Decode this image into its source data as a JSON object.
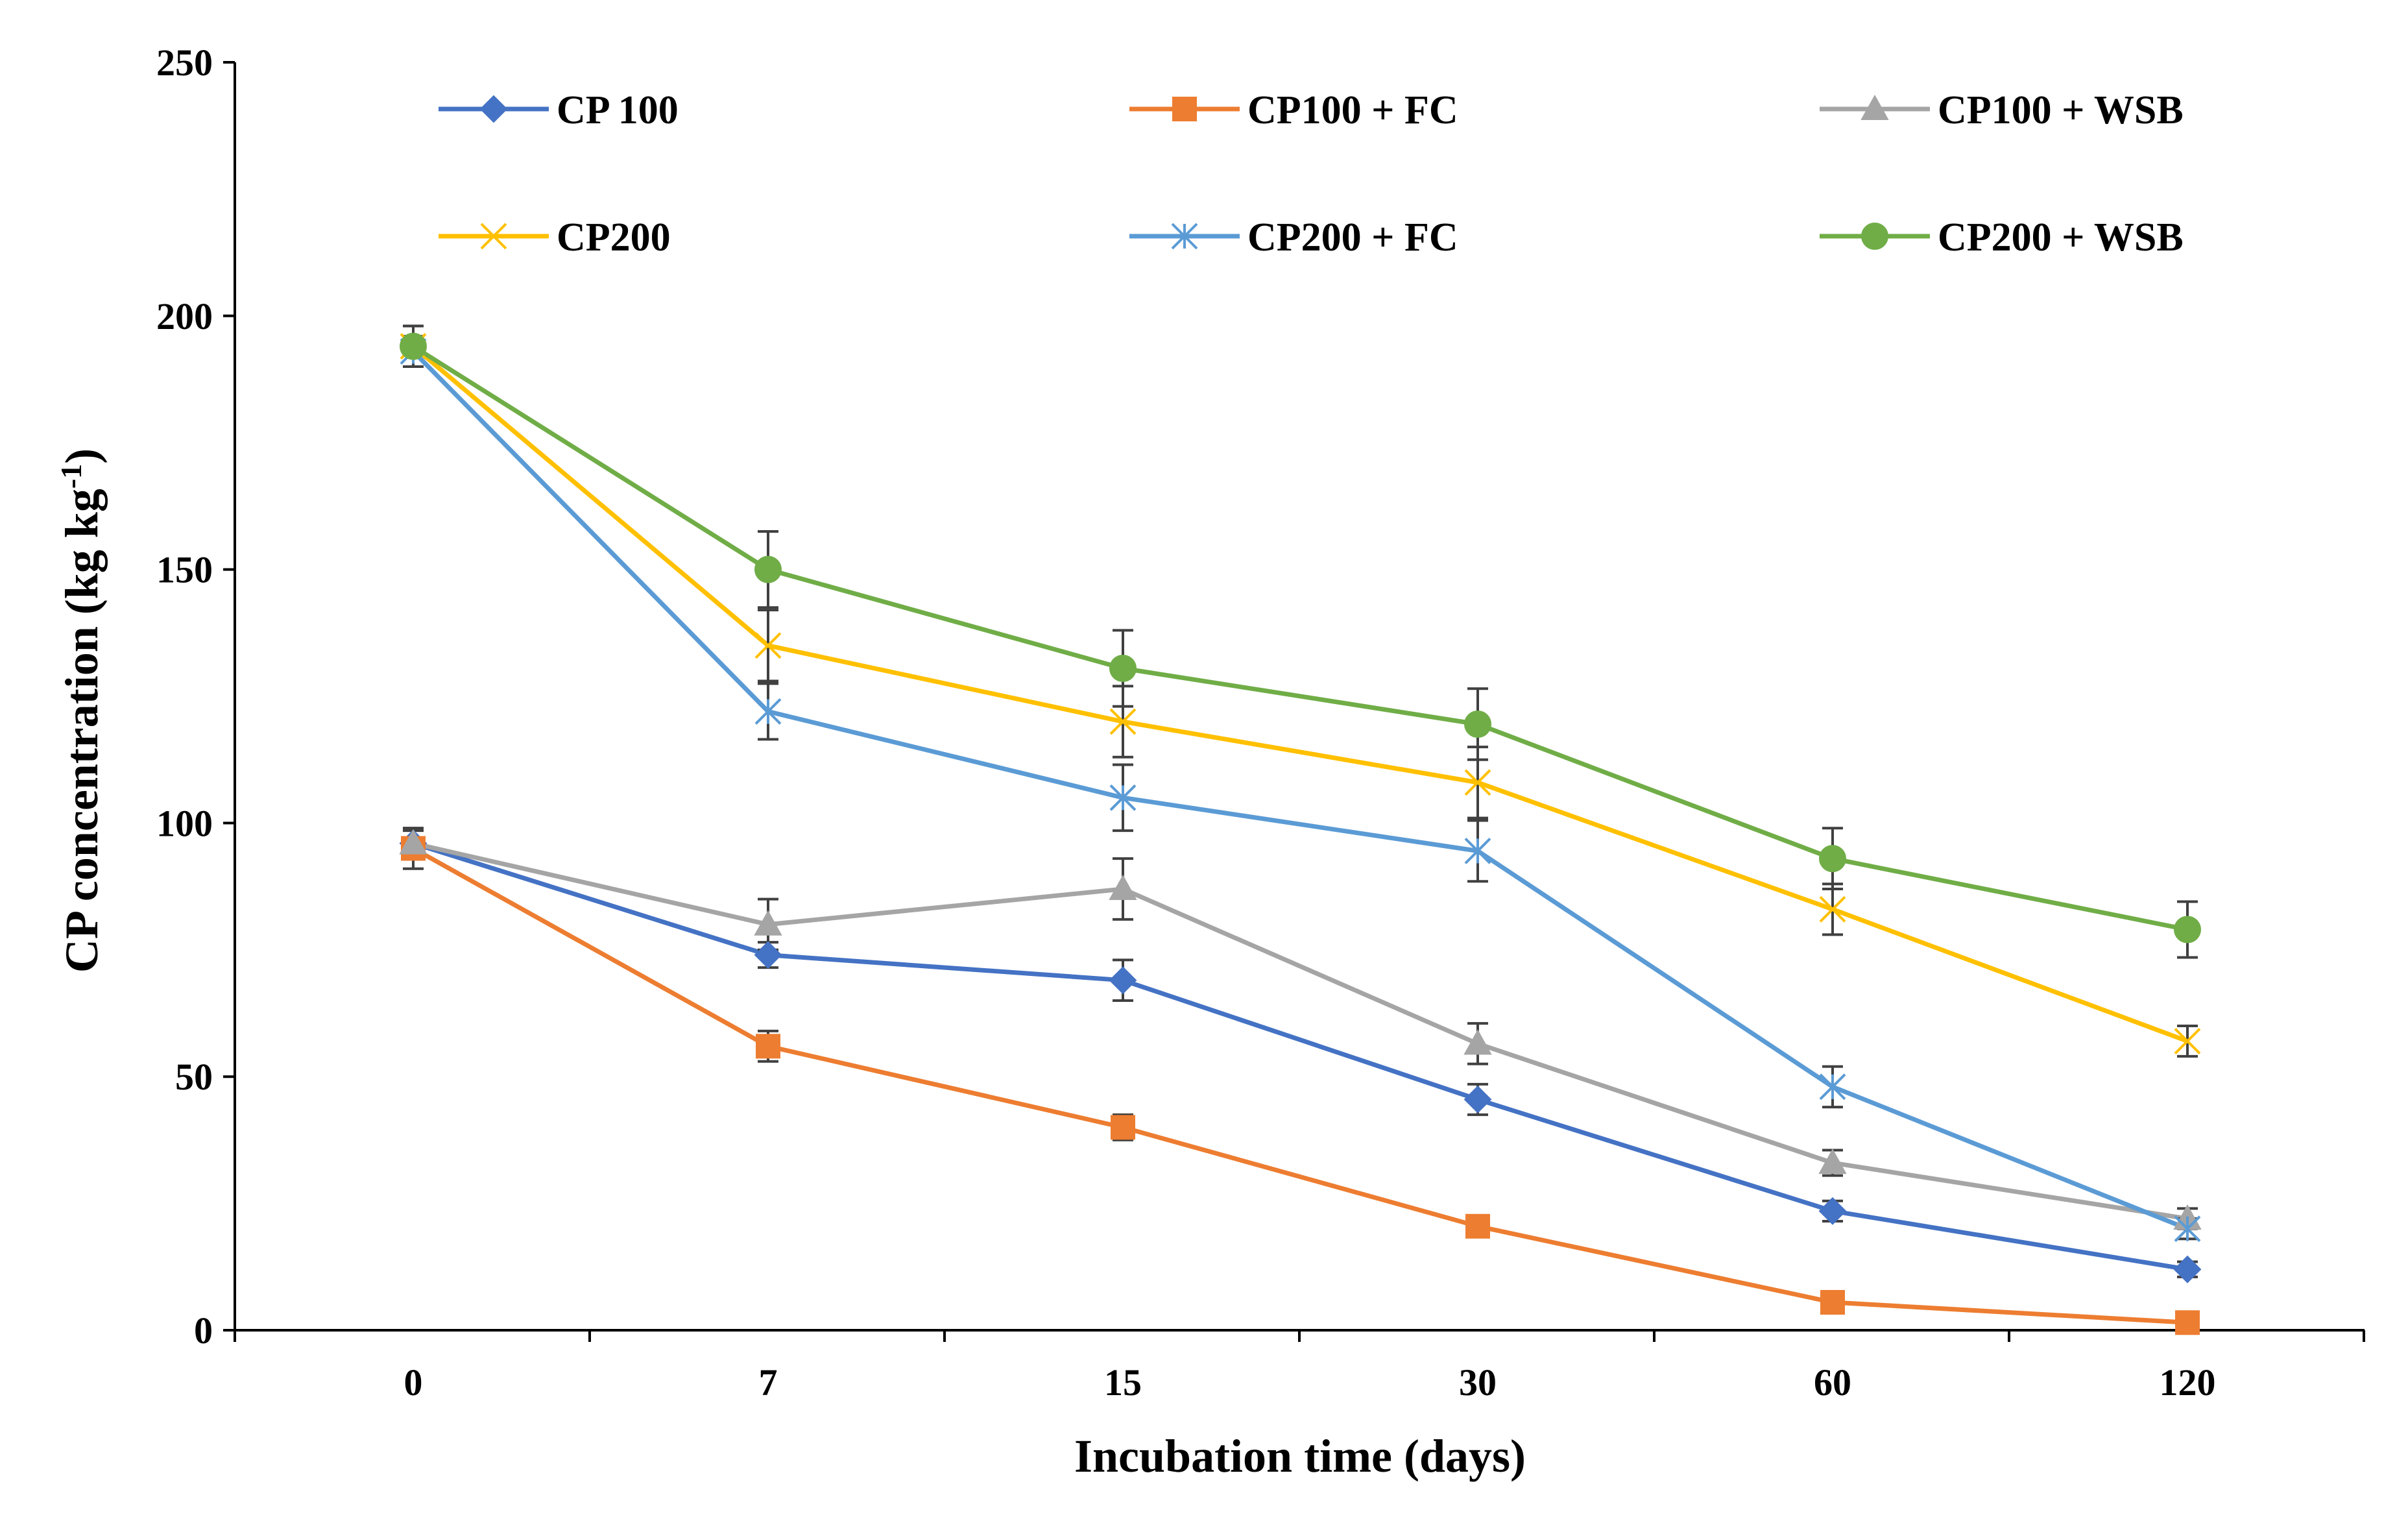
{
  "chart_data": {
    "type": "line",
    "title": "",
    "xlabel": "Incubation time (days)",
    "ylabel": "CP concentration (kg kg",
    "ylabel_sup": "-1",
    "ylabel_close": ")",
    "ylim": [
      0,
      250
    ],
    "yticks": [
      0,
      50,
      100,
      150,
      200,
      250
    ],
    "categories": [
      "0",
      "7",
      "15",
      "30",
      "60",
      "120"
    ],
    "grid": false,
    "legend_position": "top",
    "series": [
      {
        "name": "CP 100",
        "color": "#4472C4",
        "marker": "diamond",
        "values": [
          96,
          74,
          69,
          45.5,
          23.5,
          12
        ],
        "errors": [
          2.5,
          2.5,
          4,
          3,
          2,
          1.5
        ]
      },
      {
        "name": "CP100 + FC",
        "color": "#ED7D31",
        "marker": "square",
        "values": [
          95,
          56,
          40,
          20.5,
          5.5,
          1.5
        ],
        "errors": [
          4,
          3,
          2.5,
          1.5,
          1,
          1
        ]
      },
      {
        "name": "CP100 + WSB",
        "color": "#A5A5A5",
        "marker": "triangle",
        "values": [
          96,
          80,
          87,
          56.5,
          33,
          22
        ],
        "errors": [
          3,
          5,
          6,
          4,
          2.5,
          2
        ]
      },
      {
        "name": "CP200",
        "color": "#FFC000",
        "marker": "x",
        "values": [
          194,
          135,
          120,
          108,
          83,
          57
        ],
        "errors": [
          4,
          7,
          7,
          7,
          5,
          3
        ]
      },
      {
        "name": "CP200 + FC",
        "color": "#5B9BD5",
        "marker": "asterisk",
        "values": [
          193,
          122,
          105,
          94.5,
          48,
          20
        ],
        "errors": [
          3,
          5.5,
          6.5,
          6,
          4,
          2
        ]
      },
      {
        "name": "CP200 + WSB",
        "color": "#70AD47",
        "marker": "circle",
        "values": [
          194,
          150,
          130.5,
          119.5,
          93,
          79
        ],
        "errors": [
          4,
          7.5,
          7.5,
          7,
          6,
          5.5
        ]
      }
    ]
  }
}
